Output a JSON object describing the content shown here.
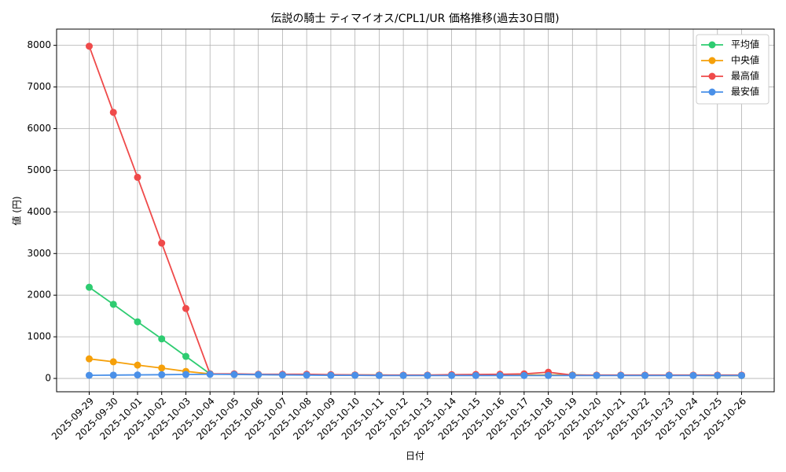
{
  "chart_data": {
    "type": "line",
    "title": "伝説の騎士 ティマイオス/CPL1/UR 価格推移(過去30日間)",
    "x_label": "日付",
    "y_label": "値 (円)",
    "categories": [
      "2025-09-29",
      "2025-09-30",
      "2025-10-01",
      "2025-10-02",
      "2025-10-03",
      "2025-10-04",
      "2025-10-05",
      "2025-10-06",
      "2025-10-07",
      "2025-10-08",
      "2025-10-09",
      "2025-10-10",
      "2025-10-11",
      "2025-10-12",
      "2025-10-13",
      "2025-10-14",
      "2025-10-15",
      "2025-10-16",
      "2025-10-17",
      "2025-10-18",
      "2025-10-19",
      "2025-10-20",
      "2025-10-21",
      "2025-10-22",
      "2025-10-23",
      "2025-10-24",
      "2025-10-25",
      "2025-10-26"
    ],
    "series": [
      {
        "name": "平均値",
        "color": "#2ecc71",
        "values": [
          2190,
          1780,
          1360,
          950,
          530,
          110,
          100,
          95,
          90,
          90,
          85,
          80,
          80,
          75,
          75,
          80,
          80,
          80,
          80,
          80,
          85,
          75,
          75,
          75,
          75,
          75,
          70,
          70
        ]
      },
      {
        "name": "中央値",
        "color": "#f5a00a",
        "values": [
          470,
          400,
          320,
          250,
          170,
          110,
          100,
          95,
          90,
          90,
          85,
          80,
          80,
          75,
          75,
          80,
          80,
          80,
          80,
          80,
          80,
          75,
          75,
          75,
          75,
          75,
          70,
          70
        ]
      },
      {
        "name": "最高値",
        "color": "#ef4a4a",
        "values": [
          7980,
          6390,
          4830,
          3250,
          1680,
          110,
          110,
          100,
          100,
          100,
          90,
          85,
          80,
          80,
          80,
          90,
          95,
          100,
          110,
          150,
          80,
          80,
          80,
          80,
          80,
          80,
          80,
          80
        ]
      },
      {
        "name": "最安値",
        "color": "#4a90e8",
        "values": [
          75,
          80,
          85,
          90,
          95,
          100,
          95,
          90,
          85,
          80,
          75,
          75,
          70,
          70,
          70,
          70,
          70,
          70,
          70,
          70,
          70,
          70,
          70,
          70,
          70,
          70,
          70,
          70
        ]
      }
    ],
    "ylim": [
      -320,
      8390
    ],
    "yticks": [
      0,
      1000,
      2000,
      3000,
      4000,
      5000,
      6000,
      7000,
      8000
    ],
    "grid": true,
    "legend": "upper right"
  }
}
